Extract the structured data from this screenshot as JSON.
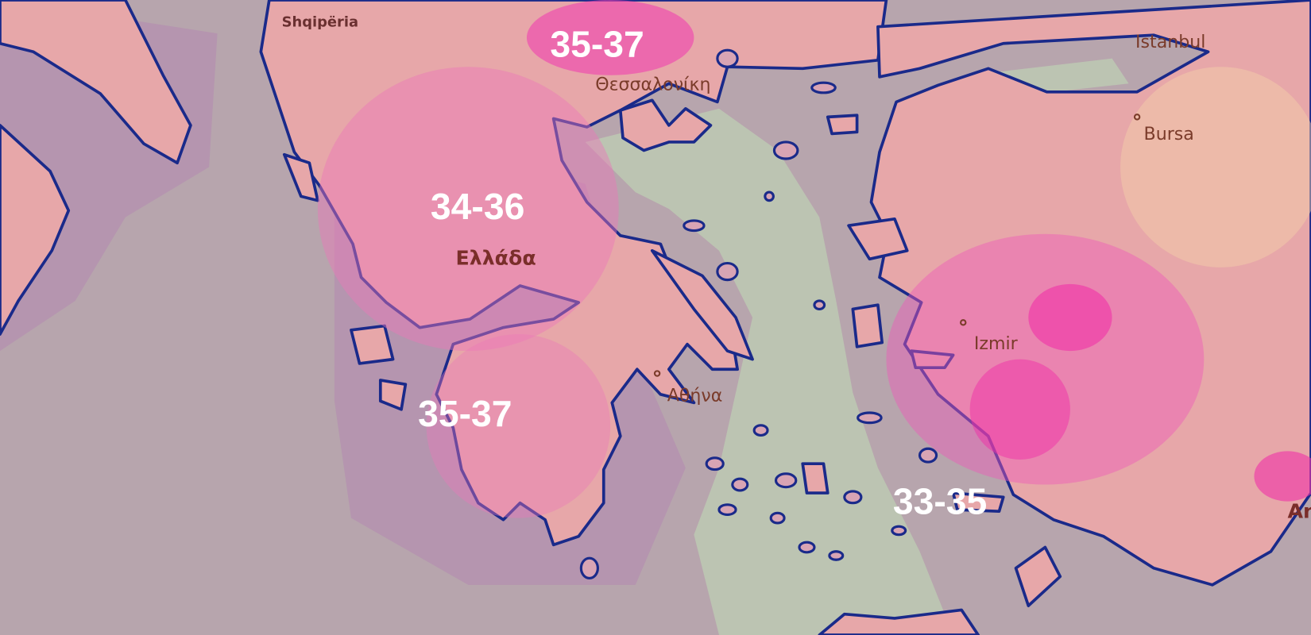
{
  "map": {
    "colors": {
      "sea": "#b7a5ad",
      "cool_sea": "#bcc4b2",
      "land": "#e8a6a8",
      "heat_light": "#f08fc0",
      "heat_strong": "#f040b0",
      "coastline": "#1a2a8a",
      "label_white": "#ffffff"
    },
    "temperature_labels": [
      {
        "region": "north-greece",
        "text": "35-37"
      },
      {
        "region": "central-greece",
        "text": "34-36"
      },
      {
        "region": "peloponnese",
        "text": "35-37"
      },
      {
        "region": "aegean-islands",
        "text": "33-35"
      }
    ],
    "place_labels": {
      "albania": "Shqipëria",
      "thessaloniki": "Θεσσαλονίκη",
      "istanbul": "Istanbul",
      "bursa": "Bursa",
      "greece": "Ελλάδα",
      "izmir": "Izmir",
      "athens": "Αθήνα",
      "antalya_partial": "An"
    }
  }
}
